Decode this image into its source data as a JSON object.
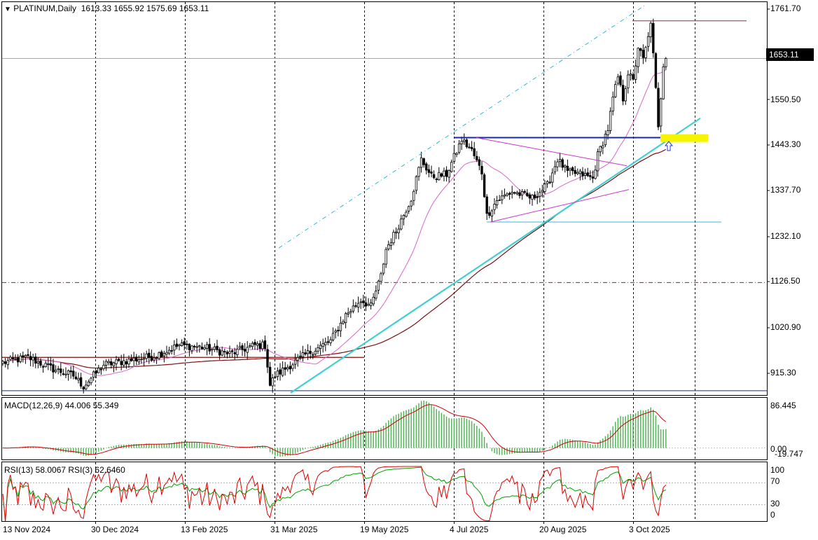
{
  "header": {
    "triangle_icon": "▼",
    "symbol": "PLATINUM,Daily",
    "ohlc": "1613.33 1655.92 1575.69 1653.11"
  },
  "last_price": "1653.11",
  "macd_label": "MACD(12,26,9) 44.006 55.349",
  "rsi_label": "RSI(13) 58.0067  RSI(3) 62.6460",
  "chart_data": [
    {
      "type": "candlestick",
      "name": "PLATINUM,Daily",
      "price_axis_labels": [
        "1761.70",
        "1550.50",
        "1443.30",
        "1337.70",
        "1232.10",
        "1126.50",
        "1020.90",
        "915.30"
      ],
      "date_axis_labels": [
        "13 Nov 2024",
        "30 Dec 2024",
        "13 Feb 2025",
        "31 Mar 2025",
        "19 May 2025",
        "4 Jul 2025",
        "20 Aug 2025",
        "3 Oct 2025"
      ],
      "ylim": [
        875,
        1785
      ],
      "anchors": [
        [
          0,
          950
        ],
        [
          10,
          962
        ],
        [
          20,
          935
        ],
        [
          28,
          920
        ],
        [
          32,
          895
        ],
        [
          40,
          945
        ],
        [
          50,
          955
        ],
        [
          60,
          965
        ],
        [
          70,
          990
        ],
        [
          80,
          985
        ],
        [
          90,
          970
        ],
        [
          100,
          990
        ],
        [
          104,
          990
        ],
        [
          106,
          898
        ],
        [
          108,
          920
        ],
        [
          120,
          968
        ],
        [
          130,
          1000
        ],
        [
          136,
          1060
        ],
        [
          142,
          1095
        ],
        [
          146,
          1080
        ],
        [
          150,
          1150
        ],
        [
          152,
          1212
        ],
        [
          156,
          1255
        ],
        [
          162,
          1330
        ],
        [
          166,
          1420
        ],
        [
          170,
          1380
        ],
        [
          176,
          1385
        ],
        [
          182,
          1465
        ],
        [
          186,
          1440
        ],
        [
          190,
          1390
        ],
        [
          192,
          1290
        ],
        [
          196,
          1325
        ],
        [
          202,
          1345
        ],
        [
          210,
          1330
        ],
        [
          216,
          1360
        ],
        [
          220,
          1420
        ],
        [
          224,
          1390
        ],
        [
          230,
          1385
        ],
        [
          234,
          1375
        ],
        [
          236,
          1430
        ],
        [
          240,
          1490
        ],
        [
          242,
          1560
        ],
        [
          244,
          1610
        ],
        [
          246,
          1560
        ],
        [
          248,
          1620
        ],
        [
          250,
          1600
        ],
        [
          252,
          1680
        ],
        [
          254,
          1650
        ],
        [
          256,
          1700
        ],
        [
          257,
          1740
        ],
        [
          259,
          1580
        ],
        [
          260,
          1490
        ],
        [
          262,
          1640
        ],
        [
          263,
          1653
        ]
      ],
      "overlays": {
        "ma_slow_color": "#7b1010",
        "ma_fast_color": "#d966c8",
        "trendline_color": "#40d0d0",
        "horizontal_levels": [
          1470,
          1275,
          1135,
          885,
          1740
        ],
        "highlight_zone": [
          1460,
          1478
        ]
      }
    },
    {
      "type": "bar",
      "name": "MACD(12,26,9)",
      "ylim": [
        -19.747,
        86.445
      ],
      "axis_labels": [
        "86.445",
        "0.00",
        "-19.747"
      ],
      "colors": {
        "histogram": "#4caf50",
        "signal": "#cc0000"
      }
    },
    {
      "type": "line",
      "name": "RSI(13), RSI(3)",
      "ylim": [
        0,
        100
      ],
      "axis_labels": [
        "100",
        "70",
        "30",
        "0"
      ],
      "levels": [
        70,
        30
      ],
      "colors": {
        "rsi13": "#00a000",
        "rsi3": "#dd0000"
      }
    }
  ]
}
